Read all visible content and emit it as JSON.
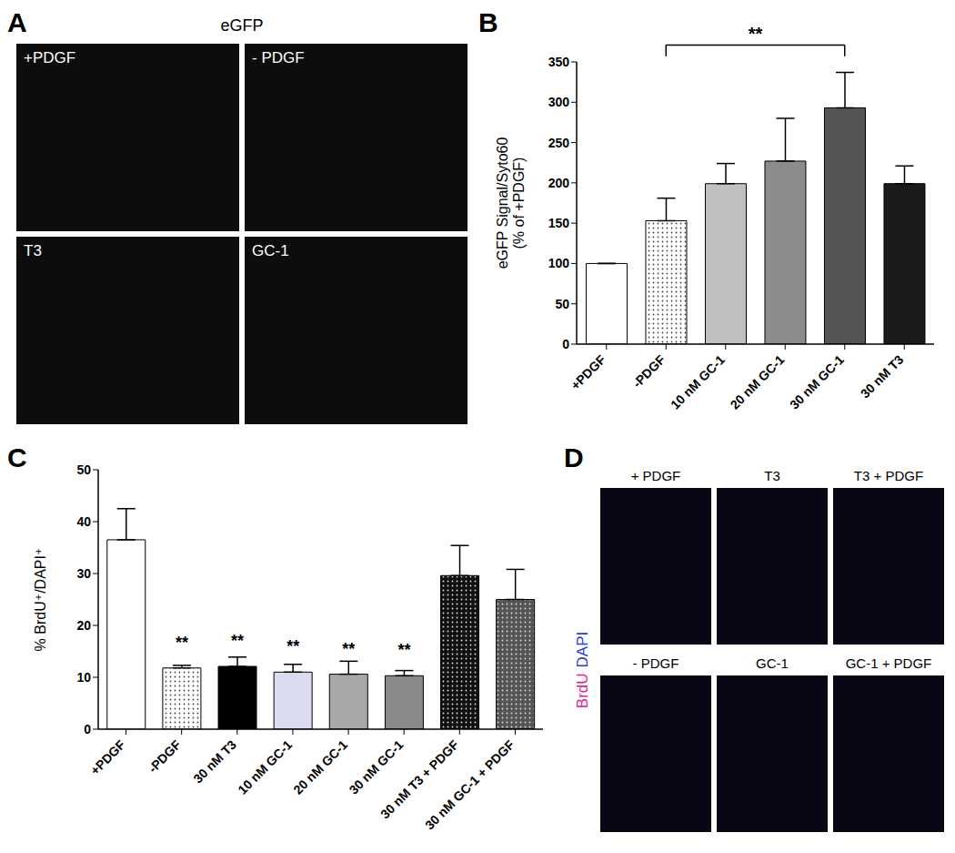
{
  "images": [
    {
      "panel": "A",
      "title": "eGFP",
      "labels": [
        "+PDGF",
        "- PDGF",
        "T3",
        "GC-1"
      ]
    },
    {
      "panel": "D",
      "labels": [
        "+ PDGF",
        "T3",
        "T3 + PDGF",
        "- PDGF",
        "GC-1",
        "GC-1 + PDGF"
      ],
      "legend": [
        {
          "name": "BrdU",
          "color": "#e8218a"
        },
        {
          "name": "DAPI",
          "color": "#2b3be0"
        }
      ]
    }
  ],
  "chart_data": [
    {
      "panel": "B",
      "type": "bar",
      "y_label": [
        "eGFP Signal/Syto60",
        "(% of +PDGF)"
      ],
      "categories": [
        "+PDGF",
        "-PDGF",
        "10 nM GC-1",
        "20 nM GC-1",
        "30 nM GC-1",
        "30 nM T3"
      ],
      "values": [
        100,
        153,
        199,
        227,
        293,
        199
      ],
      "errors": [
        0,
        28,
        25,
        53,
        44,
        22
      ],
      "colors": [
        "#ffffff",
        "#ffffff",
        "#c0c0c0",
        "#8c8c8c",
        "#555555",
        "#1a1a1a"
      ],
      "ylim": [
        0,
        350
      ],
      "yticks": [
        0,
        50,
        100,
        150,
        200,
        250,
        300,
        350
      ],
      "annotations": [
        {
          "from": "-PDGF",
          "to": "30 nM GC-1",
          "text": "**"
        }
      ]
    },
    {
      "panel": "C",
      "type": "bar",
      "y_label": "% BrdU⁺/DAPI⁺",
      "categories": [
        "+PDGF",
        "-PDGF",
        "30 nM T3",
        "10 nM GC-1",
        "20 nM GC-1",
        "30 nM GC-1",
        "30 nM T3 + PDGF",
        "30 nM GC-1 + PDGF"
      ],
      "values": [
        36.5,
        11.8,
        12.1,
        11,
        10.6,
        10.3,
        29.6,
        25
      ],
      "errors": [
        6,
        0.5,
        1.8,
        1.5,
        2.5,
        1,
        5.8,
        5.8
      ],
      "colors": [
        "#ffffff",
        "#ffffff",
        "#000000",
        "#dcdcf0",
        "#a8a8a8",
        "#8a8a8a",
        "#111111",
        "#555555"
      ],
      "ylim": [
        0,
        50
      ],
      "yticks": [
        0,
        10,
        20,
        30,
        40,
        50
      ],
      "significance": [
        null,
        "**",
        "**",
        "**",
        "**",
        "**",
        null,
        null
      ]
    }
  ]
}
